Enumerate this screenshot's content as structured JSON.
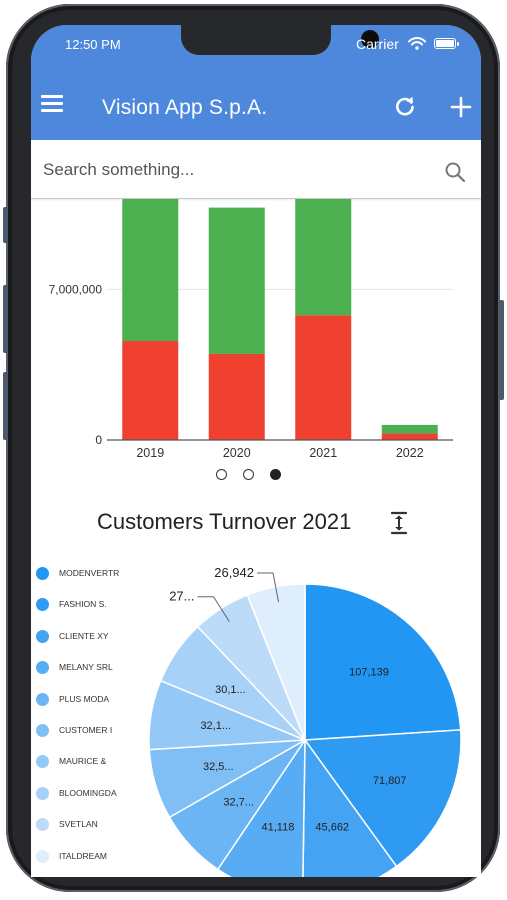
{
  "status_bar": {
    "time": "12:50 PM",
    "carrier": "Carrier"
  },
  "app_bar": {
    "title": "Vision App S.p.A.",
    "menu_icon": "hamburger-menu-icon",
    "refresh_icon": "refresh-icon",
    "add_icon": "plus-icon",
    "color": "#4e88dd"
  },
  "search": {
    "placeholder": "Search something...",
    "value": "",
    "icon": "search-icon"
  },
  "carousel": {
    "pages": 3,
    "active_page": 3
  },
  "chart_data": [
    {
      "type": "bar",
      "stacked": true,
      "categories": [
        "2019",
        "2020",
        "2021",
        "2022"
      ],
      "series": [
        {
          "color": "#f04030",
          "values": [
            4600000,
            4000000,
            5800000,
            300000
          ]
        },
        {
          "color": "#4caf50",
          "values": [
            6600000,
            6800000,
            5400000,
            400000
          ]
        }
      ],
      "yticks": [
        "0",
        "7,000,000"
      ],
      "ylim": [
        0,
        11200000
      ],
      "grid": true
    },
    {
      "type": "pie",
      "title": "Customers Turnover 2021",
      "legend_position": "left",
      "legend": [
        "MODENVERTR",
        "FASHION S.",
        "CLIENTE XY",
        "MELANY SRL",
        "PLUS MODA",
        "CUSTOMER I",
        "MAURICE &",
        "BLOOMINGDA",
        "SVETLAN",
        "ITALDREAM"
      ],
      "slices": [
        {
          "value": 107139,
          "label": "107,139",
          "color": "#2196f3"
        },
        {
          "value": 71807,
          "label": "71,807",
          "color": "#2f9af2"
        },
        {
          "value": 45662,
          "label": "45,662",
          "color": "#44a3f3"
        },
        {
          "value": 41118,
          "label": "41,118",
          "color": "#58acf4"
        },
        {
          "value": 32700,
          "label": "32,7...",
          "color": "#6cb5f5"
        },
        {
          "value": 32500,
          "label": "32,5...",
          "color": "#80bef6"
        },
        {
          "value": 32100,
          "label": "32,1...",
          "color": "#94c8f7"
        },
        {
          "value": 30100,
          "label": "30,1...",
          "color": "#a8d1f8"
        },
        {
          "value": 27000,
          "label": "27...",
          "color": "#bcdbf9"
        },
        {
          "value": 26942,
          "label": "26,942",
          "color": "#dfeefc"
        }
      ]
    }
  ],
  "expand_icon": "expand-vertical-icon"
}
